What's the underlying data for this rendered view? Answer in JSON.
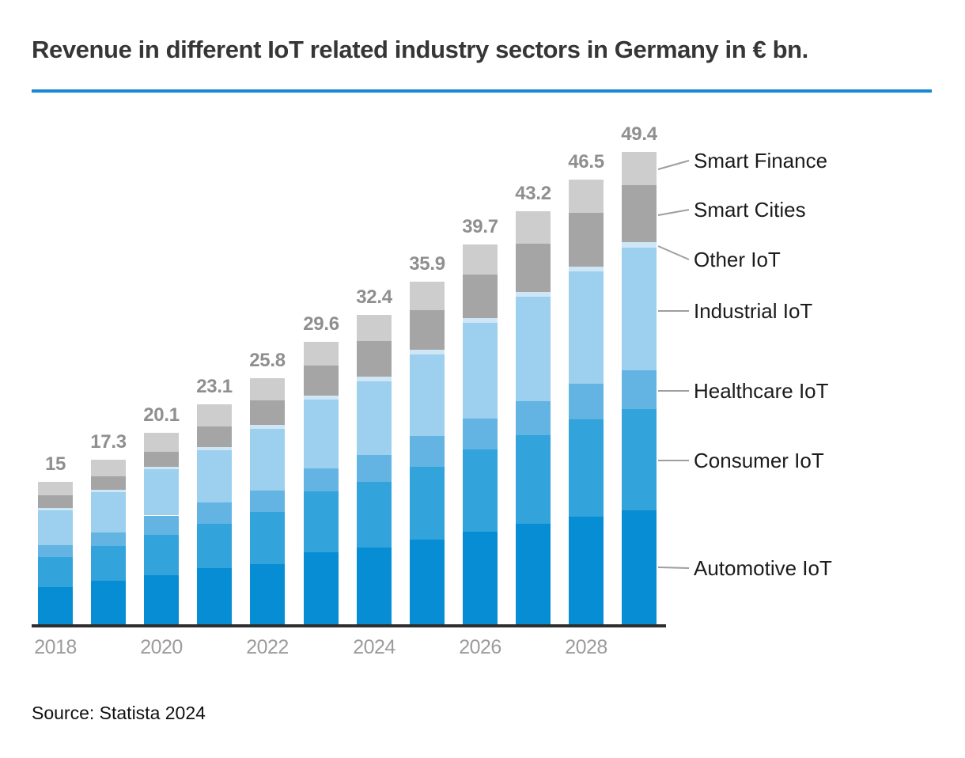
{
  "title": "Revenue in different IoT related industry sectors in Germany in € bn.",
  "source": "Source: Statista 2024",
  "colors": {
    "accent_rule": "#1588d1",
    "axis_line": "#2e2e2e",
    "total_label": "#8f8f8f",
    "tick_label": "#9c9c9c",
    "legend_text": "#1b1b1b",
    "leader_line": "#9e9e9e"
  },
  "chart_data": {
    "type": "bar",
    "stacked": true,
    "title": "Revenue in different IoT related industry sectors in Germany in € bn.",
    "value_unit": "€ bn",
    "xlabel": "",
    "ylabel": "",
    "grid": false,
    "legend_position": "right",
    "categories": [
      "2018",
      "2019",
      "2020",
      "2021",
      "2022",
      "2023",
      "2024",
      "2025",
      "2026",
      "2027",
      "2028",
      "2029"
    ],
    "x_tick_labels": [
      "2018",
      "2020",
      "2022",
      "2024",
      "2026",
      "2028"
    ],
    "totals": [
      15,
      17.3,
      20.1,
      23.1,
      25.8,
      29.6,
      32.4,
      35.9,
      39.7,
      43.2,
      46.5,
      49.4
    ],
    "total_labels": [
      "15",
      "17.3",
      "20.1",
      "23.1",
      "25.8",
      "29.6",
      "32.4",
      "35.9",
      "39.7",
      "43.2",
      "46.5",
      "49.4"
    ],
    "series": [
      {
        "name": "Automotive IoT",
        "color": "#078dd3",
        "values": [
          4.0,
          4.7,
          5.3,
          6.0,
          6.4,
          7.7,
          8.2,
          9.0,
          9.8,
          10.6,
          11.4,
          12.0
        ]
      },
      {
        "name": "Consumer IoT",
        "color": "#32a3db",
        "values": [
          3.2,
          3.6,
          4.2,
          4.6,
          5.5,
          6.3,
          6.8,
          7.6,
          8.6,
          9.3,
          10.1,
          10.6
        ]
      },
      {
        "name": "Healthcare IoT",
        "color": "#63b4e3",
        "values": [
          1.2,
          1.4,
          2.0,
          2.3,
          2.2,
          2.4,
          2.8,
          3.2,
          3.2,
          3.5,
          3.7,
          4.0
        ]
      },
      {
        "name": "Industrial IoT",
        "color": "#9cd0ee",
        "values": [
          3.6,
          4.2,
          4.8,
          5.4,
          6.4,
          7.2,
          7.7,
          8.5,
          10.0,
          10.9,
          11.7,
          12.8
        ]
      },
      {
        "name": "Other IoT",
        "color": "#cfe6f7",
        "values": [
          0.3,
          0.3,
          0.3,
          0.3,
          0.4,
          0.4,
          0.5,
          0.5,
          0.5,
          0.5,
          0.5,
          0.6
        ]
      },
      {
        "name": "Smart Cities",
        "color": "#a5a5a5",
        "values": [
          1.3,
          1.4,
          1.5,
          2.2,
          2.6,
          3.1,
          3.7,
          4.1,
          4.5,
          5.0,
          5.6,
          5.9
        ]
      },
      {
        "name": "Smart Finance",
        "color": "#cdcdcd",
        "values": [
          1.4,
          1.7,
          2.0,
          2.3,
          2.3,
          2.5,
          2.7,
          3.0,
          3.1,
          3.4,
          3.5,
          3.5
        ]
      }
    ],
    "legend_labels": [
      "Smart Finance",
      "Smart Cities",
      "Other IoT",
      "Industrial IoT",
      "Healthcare IoT",
      "Consumer IoT",
      "Automotive IoT"
    ]
  }
}
